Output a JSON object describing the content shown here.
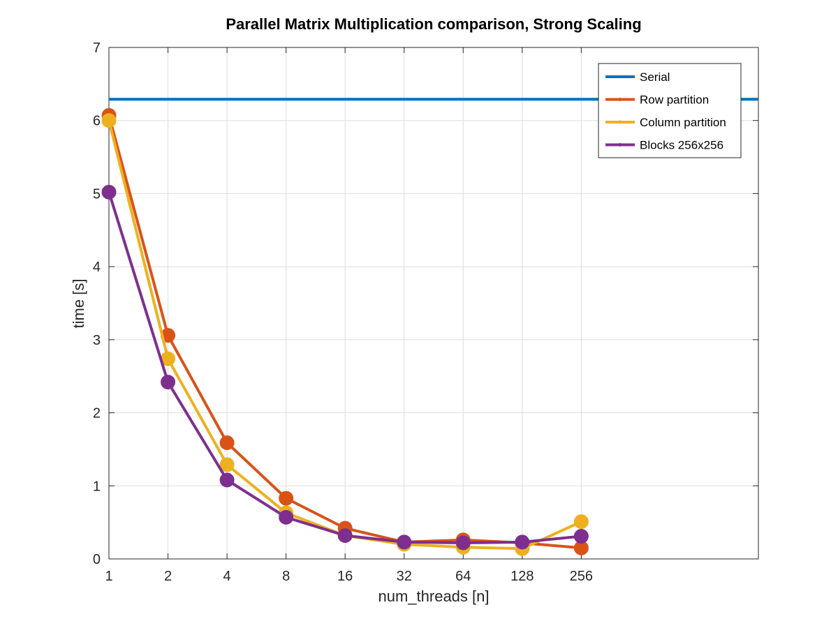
{
  "chart_data": {
    "type": "line",
    "title": "Parallel Matrix Multiplication comparison, Strong Scaling",
    "xlabel": "num_threads [n]",
    "ylabel": "time [s]",
    "x_scale": "log2",
    "x_ticks": [
      1,
      2,
      4,
      8,
      16,
      32,
      64,
      128,
      256
    ],
    "x_tick_labels": [
      "1",
      "2",
      "4",
      "8",
      "16",
      "32",
      "64",
      "128",
      "256"
    ],
    "xlim": [
      1,
      2048
    ],
    "ylim": [
      0,
      7
    ],
    "y_ticks": [
      0,
      1,
      2,
      3,
      4,
      5,
      6,
      7
    ],
    "y_tick_labels": [
      "0",
      "1",
      "2",
      "3",
      "4",
      "5",
      "6",
      "7"
    ],
    "grid": true,
    "legend_position": "top-right",
    "series": [
      {
        "name": "Serial",
        "color": "#0072BD",
        "x": [
          1,
          2048
        ],
        "values": [
          6.29,
          6.29
        ],
        "markers": false
      },
      {
        "name": "Row partition",
        "color": "#D95319",
        "x": [
          1,
          2,
          4,
          8,
          16,
          32,
          64,
          128,
          256
        ],
        "values": [
          6.07,
          3.06,
          1.59,
          0.83,
          0.42,
          0.23,
          0.26,
          0.22,
          0.15
        ],
        "markers": true
      },
      {
        "name": "Column partition",
        "color": "#EDB120",
        "x": [
          1,
          2,
          4,
          8,
          16,
          32,
          64,
          128,
          256
        ],
        "values": [
          6.0,
          2.74,
          1.29,
          0.63,
          0.32,
          0.2,
          0.16,
          0.14,
          0.51
        ],
        "markers": true
      },
      {
        "name": "Blocks 256x256",
        "color": "#7E2F8E",
        "x": [
          1,
          2,
          4,
          8,
          16,
          32,
          64,
          128,
          256
        ],
        "values": [
          5.02,
          2.42,
          1.08,
          0.57,
          0.32,
          0.23,
          0.22,
          0.23,
          0.31
        ],
        "markers": true
      }
    ]
  }
}
